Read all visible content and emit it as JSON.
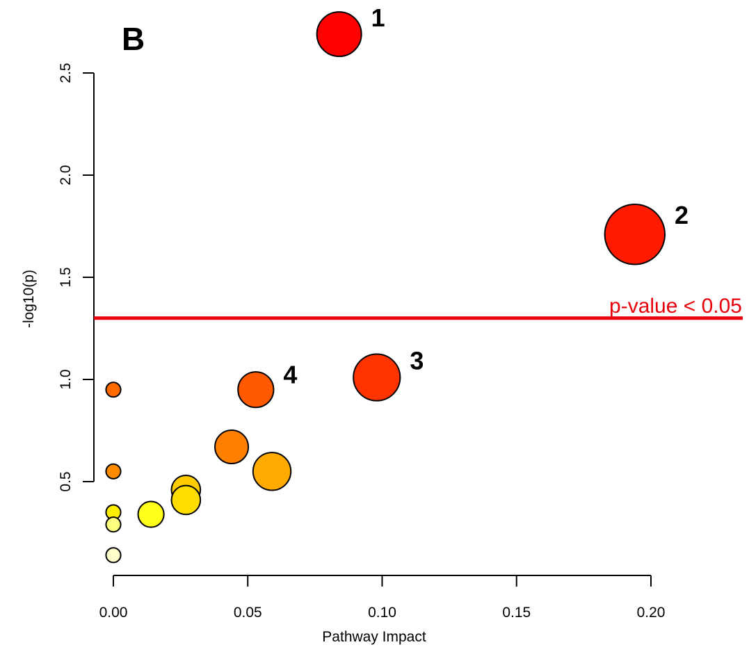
{
  "panel_label": "B",
  "chart_data": {
    "type": "scatter",
    "title": "",
    "xlabel": "Pathway Impact",
    "ylabel": "-log10(p)",
    "xlim": [
      0,
      0.2
    ],
    "ylim": [
      0,
      2.5
    ],
    "x_ticks": [
      "0.00",
      "0.05",
      "0.10",
      "0.15",
      "0.20"
    ],
    "y_ticks": [
      "0.5",
      "1.0",
      "1.5",
      "2.0",
      "2.5"
    ],
    "threshold": {
      "y": 1.3,
      "label": "p-value < 0.05",
      "color": "#e8000b"
    },
    "points": [
      {
        "x": 0.084,
        "y": 2.69,
        "size": 1.0,
        "color": "#ff0000",
        "label": "1"
      },
      {
        "x": 0.194,
        "y": 1.71,
        "size": 1.35,
        "color": "#ff1a00",
        "label": "2"
      },
      {
        "x": 0.098,
        "y": 1.01,
        "size": 1.05,
        "color": "#ff3300",
        "label": "3"
      },
      {
        "x": 0.053,
        "y": 0.95,
        "size": 0.8,
        "color": "#ff5a00",
        "label": "4"
      },
      {
        "x": 0.044,
        "y": 0.67,
        "size": 0.75,
        "color": "#ff8000",
        "label": ""
      },
      {
        "x": 0.059,
        "y": 0.55,
        "size": 0.85,
        "color": "#ffaa00",
        "label": ""
      },
      {
        "x": 0.027,
        "y": 0.46,
        "size": 0.65,
        "color": "#ffcc00",
        "label": ""
      },
      {
        "x": 0.027,
        "y": 0.41,
        "size": 0.65,
        "color": "#ffdd00",
        "label": ""
      },
      {
        "x": 0.014,
        "y": 0.34,
        "size": 0.58,
        "color": "#ffff1a",
        "label": ""
      },
      {
        "x": 0.0,
        "y": 0.95,
        "size": 0.33,
        "color": "#ff6a00",
        "label": ""
      },
      {
        "x": 0.0,
        "y": 0.55,
        "size": 0.33,
        "color": "#ff8c00",
        "label": ""
      },
      {
        "x": 0.0,
        "y": 0.35,
        "size": 0.33,
        "color": "#ffee00",
        "label": ""
      },
      {
        "x": 0.0,
        "y": 0.29,
        "size": 0.33,
        "color": "#ffff80",
        "label": ""
      },
      {
        "x": 0.0,
        "y": 0.14,
        "size": 0.33,
        "color": "#ffffcc",
        "label": ""
      }
    ],
    "grid": false,
    "legend": "none"
  }
}
